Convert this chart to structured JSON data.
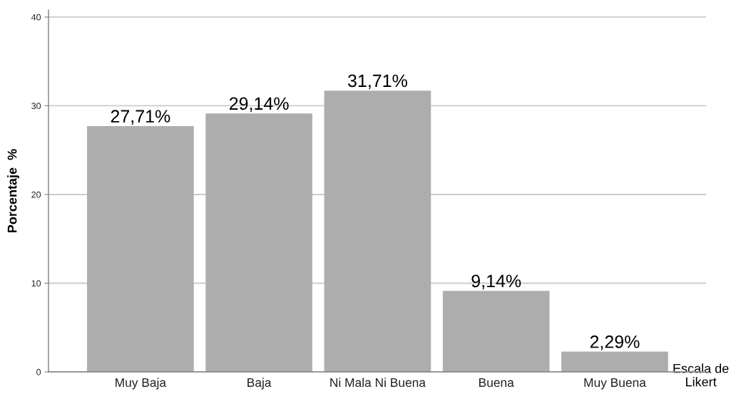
{
  "chart_data": {
    "type": "bar",
    "ylabel": "Porcentaje  %",
    "xlabel": "Escala de\nLikert",
    "categories": [
      "Muy Baja",
      "Baja",
      "Ni Mala Ni Buena",
      "Buena",
      "Muy Buena"
    ],
    "values": [
      27.71,
      29.14,
      31.71,
      9.14,
      2.29
    ],
    "value_labels": [
      "27,71%",
      "29,14%",
      "31,71%",
      "9,14%",
      "2,29%"
    ],
    "color": "#adadad",
    "ylim": [
      0,
      40.8
    ],
    "yticks": [
      0,
      10,
      20,
      30,
      40
    ],
    "grid": "y"
  }
}
